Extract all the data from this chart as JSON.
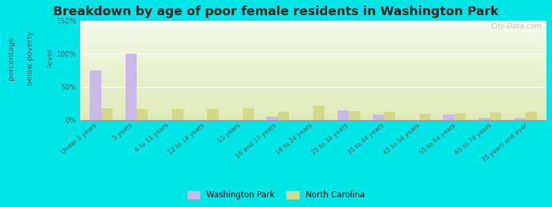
{
  "title": "Breakdown by age of poor female residents in Washington Park",
  "ylabel_line1": "percentage",
  "ylabel_line2": "below poverty",
  "ylabel_line3": "level",
  "categories": [
    "Under 5 years",
    "5 years",
    "6 to 11 years",
    "12 to 14 years",
    "15 years",
    "16 and 17 years",
    "18 to 24 years",
    "25 to 34 years",
    "35 to 44 years",
    "45 to 54 years",
    "55 to 64 years",
    "65 to 74 years",
    "75 years and over"
  ],
  "washington_park": [
    75,
    100,
    0,
    0,
    0,
    5,
    0,
    15,
    8,
    0,
    8,
    3,
    3
  ],
  "north_carolina": [
    18,
    17,
    17,
    17,
    18,
    12,
    22,
    14,
    13,
    9,
    10,
    11,
    13
  ],
  "wp_color": "#c9b8e8",
  "nc_color": "#d4d98a",
  "ylim": [
    0,
    150
  ],
  "yticks": [
    0,
    50,
    100,
    150
  ],
  "ytick_labels": [
    "0%",
    "50%",
    "100%",
    "150%"
  ],
  "bg_top": "#f0f5e0",
  "bg_bottom": "#e8f0c0",
  "outer_bg": "#00e5e5",
  "title_fontsize": 13,
  "ylabel_fontsize": 8,
  "legend_labels": [
    "Washington Park",
    "North Carolina"
  ],
  "watermark": "City-Data.com"
}
